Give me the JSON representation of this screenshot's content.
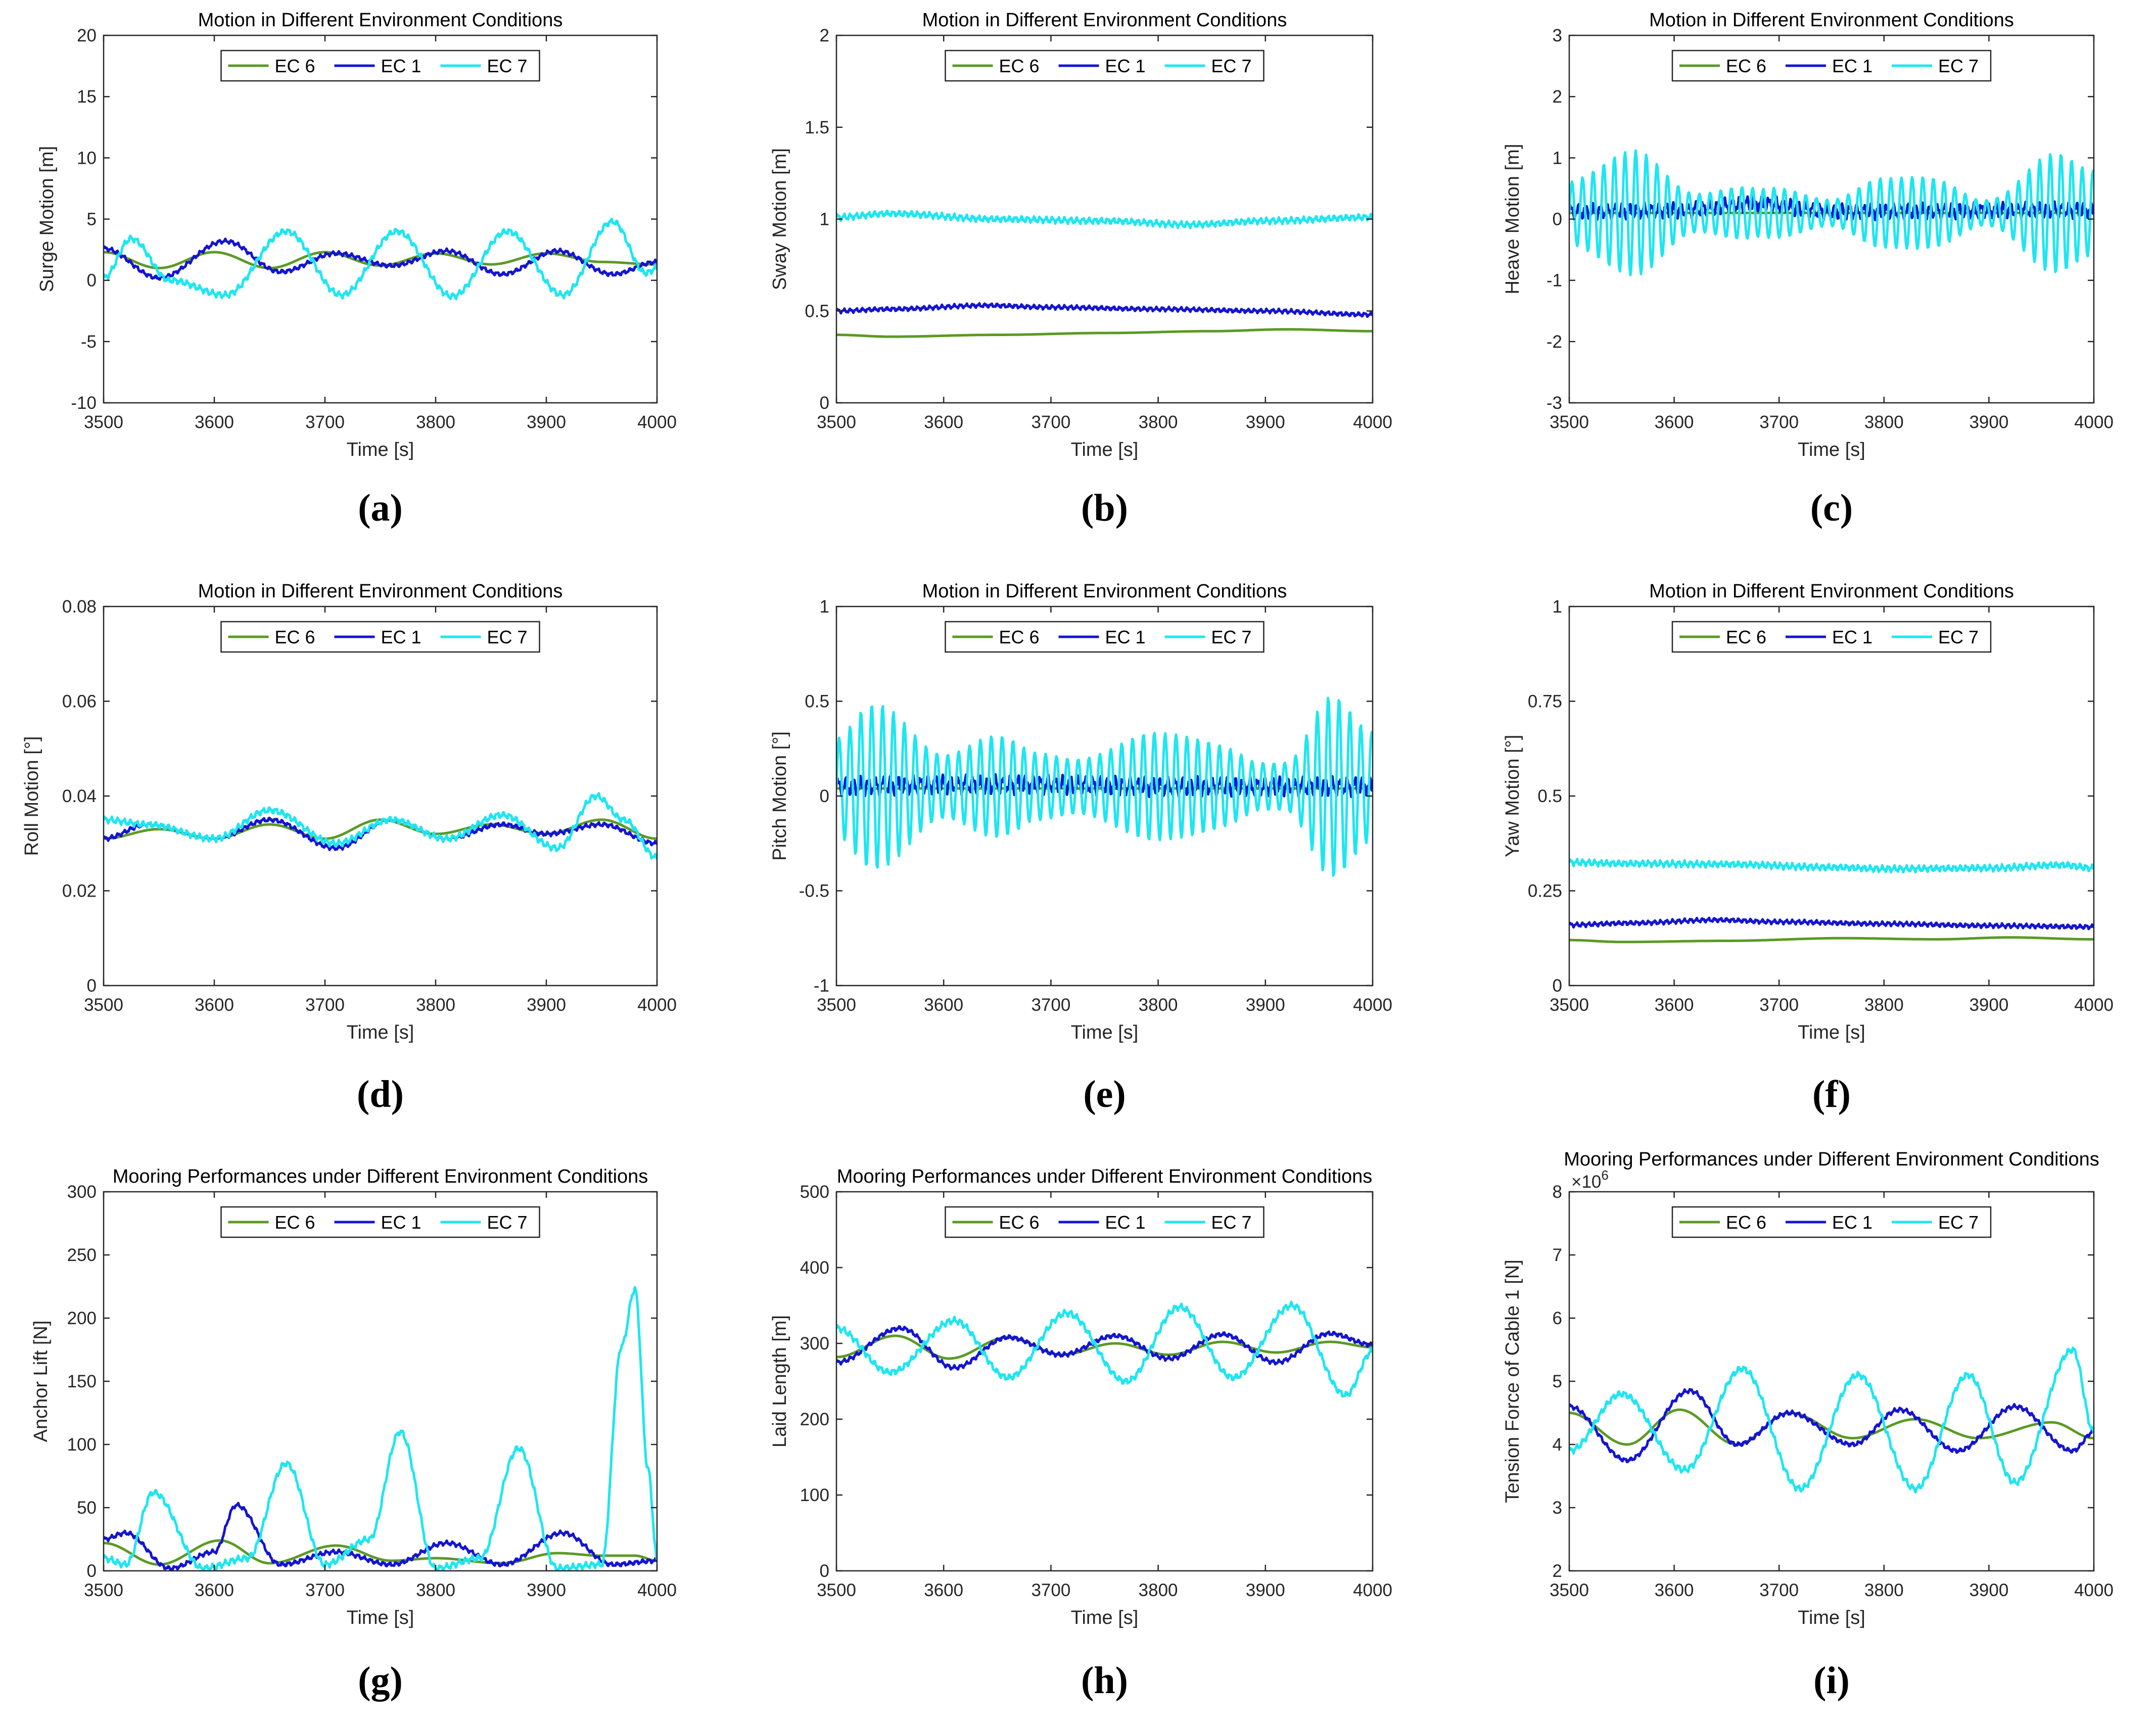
{
  "figure": {
    "panel_labels": [
      "(a)",
      "(b)",
      "(c)",
      "(d)",
      "(e)",
      "(f)",
      "(g)",
      "(h)",
      "(i)"
    ]
  },
  "colors": {
    "ec6": "#5b9a24",
    "ec1": "#1414d2",
    "ec7": "#1ee6f0"
  },
  "chart_data": [
    {
      "id": "a",
      "type": "line",
      "title": "Motion in Different Environment Conditions",
      "xlabel": "Time [s]",
      "ylabel": "Surge Motion [m]",
      "xlim": [
        3500,
        4000
      ],
      "ylim": [
        -10,
        20
      ],
      "xticks": [
        3500,
        3600,
        3700,
        3800,
        3900,
        4000
      ],
      "yticks": [
        -10,
        -5,
        0,
        5,
        10,
        15,
        20
      ],
      "legend": [
        "EC 6",
        "EC 1",
        "EC 7"
      ],
      "series": [
        {
          "name": "EC 6",
          "x": [
            3500,
            3550,
            3600,
            3650,
            3700,
            3750,
            3800,
            3850,
            3900,
            3950,
            4000
          ],
          "values": [
            2.3,
            1.0,
            2.3,
            1.0,
            2.3,
            1.2,
            2.2,
            1.3,
            2.2,
            1.5,
            1.3
          ]
        },
        {
          "name": "EC 1",
          "x": [
            3500,
            3550,
            3610,
            3660,
            3710,
            3760,
            3810,
            3860,
            3910,
            3960,
            4000
          ],
          "values": [
            2.6,
            0.2,
            3.2,
            0.7,
            2.2,
            1.2,
            2.4,
            0.5,
            2.4,
            0.5,
            1.5
          ]
        },
        {
          "name": "EC 7",
          "x": [
            3500,
            3525,
            3560,
            3610,
            3665,
            3715,
            3765,
            3815,
            3865,
            3915,
            3960,
            3990,
            4000
          ],
          "values": [
            0.2,
            3.4,
            0.0,
            -1.2,
            4.0,
            -1.2,
            4.0,
            -1.3,
            4.0,
            -1.2,
            4.8,
            0.6,
            1.0
          ]
        }
      ]
    },
    {
      "id": "b",
      "type": "line",
      "title": "Motion in Different Environment Conditions",
      "xlabel": "Time [s]",
      "ylabel": "Sway Motion [m]",
      "xlim": [
        3500,
        4000
      ],
      "ylim": [
        0,
        2
      ],
      "xticks": [
        3500,
        3600,
        3700,
        3800,
        3900,
        4000
      ],
      "yticks": [
        0,
        0.5,
        1,
        1.5,
        2
      ],
      "legend": [
        "EC 6",
        "EC 1",
        "EC 7"
      ],
      "series": [
        {
          "name": "EC 6",
          "x": [
            3500,
            3550,
            3650,
            3750,
            3850,
            3920,
            4000
          ],
          "values": [
            0.37,
            0.36,
            0.37,
            0.38,
            0.39,
            0.4,
            0.39
          ]
        },
        {
          "name": "EC 1",
          "x": [
            3500,
            3550,
            3640,
            3700,
            3800,
            3900,
            4000
          ],
          "values": [
            0.5,
            0.51,
            0.53,
            0.52,
            0.51,
            0.5,
            0.48
          ]
        },
        {
          "name": "EC 7",
          "x": [
            3500,
            3550,
            3650,
            3750,
            3830,
            3900,
            4000
          ],
          "values": [
            1.01,
            1.03,
            1.0,
            0.99,
            0.97,
            0.99,
            1.01
          ]
        }
      ]
    },
    {
      "id": "c",
      "type": "line",
      "title": "Motion in Different Environment Conditions",
      "xlabel": "Time [s]",
      "ylabel": "Heave Motion [m]",
      "xlim": [
        3500,
        4000
      ],
      "ylim": [
        -3,
        3
      ],
      "xticks": [
        3500,
        3600,
        3700,
        3800,
        3900,
        4000
      ],
      "yticks": [
        -3,
        -2,
        -1,
        0,
        1,
        2,
        3
      ],
      "legend": [
        "EC 6",
        "EC 1",
        "EC 7"
      ],
      "series": [
        {
          "name": "EC 6",
          "x": [
            3500,
            4000
          ],
          "values": [
            0.1,
            0.1
          ]
        },
        {
          "name": "EC 1",
          "x": [
            3500,
            3600,
            3680,
            3750,
            3850,
            3950,
            4000
          ],
          "values": [
            0.12,
            0.14,
            0.25,
            0.12,
            0.13,
            0.15,
            0.14
          ]
        },
        {
          "name": "EC 7",
          "x": [
            3500,
            3560,
            3620,
            3680,
            3750,
            3800,
            3850,
            3900,
            3960,
            4000
          ],
          "values": [
            0.6,
            0.9,
            0.3,
            0.6,
            0.2,
            0.5,
            0.6,
            0.3,
            0.9,
            0.6
          ]
        }
      ]
    },
    {
      "id": "d",
      "type": "line",
      "title": "Motion in Different Environment Conditions",
      "xlabel": "Time [s]",
      "ylabel": "Roll Motion [°]",
      "xlim": [
        3500,
        4000
      ],
      "ylim": [
        0,
        0.08
      ],
      "xticks": [
        3500,
        3600,
        3700,
        3800,
        3900,
        4000
      ],
      "yticks": [
        0,
        0.02,
        0.04,
        0.06,
        0.08
      ],
      "legend": [
        "EC 6",
        "EC 1",
        "EC 7"
      ],
      "series": [
        {
          "name": "EC 6",
          "x": [
            3500,
            3550,
            3600,
            3650,
            3700,
            3750,
            3800,
            3850,
            3900,
            3950,
            4000
          ],
          "values": [
            0.031,
            0.033,
            0.031,
            0.034,
            0.031,
            0.035,
            0.032,
            0.034,
            0.032,
            0.035,
            0.031
          ]
        },
        {
          "name": "EC 1",
          "x": [
            3500,
            3540,
            3600,
            3650,
            3710,
            3760,
            3810,
            3860,
            3900,
            3950,
            4000
          ],
          "values": [
            0.031,
            0.034,
            0.031,
            0.035,
            0.029,
            0.035,
            0.031,
            0.034,
            0.032,
            0.034,
            0.03
          ]
        },
        {
          "name": "EC 7",
          "x": [
            3500,
            3540,
            3600,
            3650,
            3710,
            3760,
            3810,
            3860,
            3910,
            3945,
            3970,
            4000
          ],
          "values": [
            0.035,
            0.034,
            0.031,
            0.037,
            0.03,
            0.035,
            0.031,
            0.036,
            0.029,
            0.04,
            0.035,
            0.027
          ]
        }
      ]
    },
    {
      "id": "e",
      "type": "line",
      "title": "Motion in Different Environment Conditions",
      "xlabel": "Time [s]",
      "ylabel": "Pitch Motion [°]",
      "xlim": [
        3500,
        4000
      ],
      "ylim": [
        -1,
        1
      ],
      "xticks": [
        3500,
        3600,
        3700,
        3800,
        3900,
        4000
      ],
      "yticks": [
        -1,
        -0.5,
        0,
        0.5,
        1
      ],
      "legend": [
        "EC 6",
        "EC 1",
        "EC 7"
      ],
      "series": [
        {
          "name": "EC 6",
          "x": [
            3500,
            4000
          ],
          "values": [
            0.04,
            0.04
          ]
        },
        {
          "name": "EC 1",
          "x": [
            3500,
            3600,
            3700,
            3800,
            3900,
            4000
          ],
          "values": [
            0.05,
            0.06,
            0.06,
            0.05,
            0.05,
            0.05
          ]
        },
        {
          "name": "EC 7",
          "x": [
            3500,
            3530,
            3600,
            3660,
            3730,
            3800,
            3860,
            3920,
            3960,
            4000
          ],
          "values": [
            0.3,
            0.42,
            0.15,
            0.32,
            0.15,
            0.25,
            0.25,
            0.15,
            0.44,
            0.25
          ]
        }
      ]
    },
    {
      "id": "f",
      "type": "line",
      "title": "Motion in Different Environment Conditions",
      "xlabel": "Time [s]",
      "ylabel": "Yaw Motion [°]",
      "xlim": [
        3500,
        4000
      ],
      "ylim": [
        0,
        1
      ],
      "xticks": [
        3500,
        3600,
        3700,
        3800,
        3900,
        4000
      ],
      "yticks": [
        0,
        0.25,
        0.5,
        0.75,
        1
      ],
      "legend": [
        "EC 6",
        "EC 1",
        "EC 7"
      ],
      "series": [
        {
          "name": "EC 6",
          "x": [
            3500,
            3550,
            3650,
            3760,
            3850,
            3920,
            4000
          ],
          "values": [
            0.12,
            0.115,
            0.118,
            0.125,
            0.122,
            0.127,
            0.122
          ]
        },
        {
          "name": "EC 1",
          "x": [
            3500,
            3560,
            3640,
            3700,
            3800,
            3900,
            4000
          ],
          "values": [
            0.16,
            0.165,
            0.173,
            0.168,
            0.163,
            0.158,
            0.155
          ]
        },
        {
          "name": "EC 7",
          "x": [
            3500,
            3550,
            3650,
            3750,
            3800,
            3900,
            3970,
            4000
          ],
          "values": [
            0.325,
            0.322,
            0.32,
            0.312,
            0.308,
            0.31,
            0.318,
            0.31
          ]
        }
      ]
    },
    {
      "id": "g",
      "type": "line",
      "title": "Mooring Performances under Different Environment Conditions",
      "xlabel": "Time [s]",
      "ylabel": "Anchor Lift [N]",
      "xlim": [
        3500,
        4000
      ],
      "ylim": [
        0,
        300
      ],
      "xticks": [
        3500,
        3600,
        3700,
        3800,
        3900,
        4000
      ],
      "yticks": [
        0,
        50,
        100,
        150,
        200,
        250,
        300
      ],
      "legend": [
        "EC 6",
        "EC 1",
        "EC 7"
      ],
      "series": [
        {
          "name": "EC 6",
          "x": [
            3500,
            3550,
            3605,
            3650,
            3710,
            3760,
            3800,
            3860,
            3910,
            3950,
            3980,
            4000
          ],
          "values": [
            22,
            5,
            24,
            6,
            20,
            8,
            10,
            6,
            14,
            12,
            12,
            8
          ]
        },
        {
          "name": "EC 1",
          "x": [
            3500,
            3520,
            3560,
            3600,
            3620,
            3660,
            3710,
            3760,
            3810,
            3860,
            3915,
            3960,
            4000
          ],
          "values": [
            25,
            30,
            2,
            15,
            52,
            5,
            15,
            5,
            22,
            5,
            30,
            5,
            8
          ]
        },
        {
          "name": "EC 7",
          "x": [
            3500,
            3520,
            3545,
            3590,
            3630,
            3665,
            3700,
            3740,
            3768,
            3800,
            3840,
            3875,
            3910,
            3950,
            3968,
            3980,
            3992,
            4000
          ],
          "values": [
            10,
            5,
            62,
            2,
            10,
            85,
            5,
            25,
            110,
            2,
            10,
            97,
            2,
            5,
            178,
            223,
            80,
            10
          ]
        }
      ]
    },
    {
      "id": "h",
      "type": "line",
      "title": "Mooring Performances under Different Environment Conditions",
      "xlabel": "Time [s]",
      "ylabel": "Laid Length [m]",
      "xlim": [
        3500,
        4000
      ],
      "ylim": [
        0,
        500
      ],
      "xticks": [
        3500,
        3600,
        3700,
        3800,
        3900,
        4000
      ],
      "yticks": [
        0,
        100,
        200,
        300,
        400,
        500
      ],
      "legend": [
        "EC 6",
        "EC 1",
        "EC 7"
      ],
      "series": [
        {
          "name": "EC 6",
          "x": [
            3500,
            3555,
            3605,
            3660,
            3710,
            3760,
            3810,
            3860,
            3910,
            3960,
            4000
          ],
          "values": [
            282,
            310,
            280,
            308,
            285,
            300,
            285,
            302,
            288,
            302,
            295
          ]
        },
        {
          "name": "EC 1",
          "x": [
            3500,
            3560,
            3610,
            3660,
            3710,
            3760,
            3810,
            3860,
            3910,
            3960,
            4000
          ],
          "values": [
            275,
            320,
            268,
            308,
            285,
            310,
            280,
            312,
            275,
            313,
            298
          ]
        },
        {
          "name": "EC 7",
          "x": [
            3500,
            3550,
            3610,
            3660,
            3715,
            3770,
            3820,
            3870,
            3925,
            3975,
            4000
          ],
          "values": [
            320,
            262,
            330,
            255,
            340,
            250,
            348,
            255,
            350,
            232,
            290
          ]
        }
      ]
    },
    {
      "id": "i",
      "type": "line",
      "title": "Mooring Performances under Different Environment Conditions",
      "xlabel": "Time [s]",
      "ylabel": "Tension Force of Cable 1 [N]",
      "y_exponent": "×10",
      "y_exponent_power": "6",
      "xlim": [
        3500,
        4000
      ],
      "ylim": [
        2,
        8
      ],
      "xticks": [
        3500,
        3600,
        3700,
        3800,
        3900,
        4000
      ],
      "yticks": [
        2,
        3,
        4,
        5,
        6,
        7,
        8
      ],
      "legend": [
        "EC 6",
        "EC 1",
        "EC 7"
      ],
      "series": [
        {
          "name": "EC 6",
          "x": [
            3500,
            3555,
            3605,
            3660,
            3710,
            3770,
            3830,
            3890,
            3960,
            4000
          ],
          "values": [
            4.5,
            4.0,
            4.55,
            4.0,
            4.5,
            4.1,
            4.4,
            4.1,
            4.35,
            4.1
          ]
        },
        {
          "name": "EC 1",
          "x": [
            3500,
            3555,
            3615,
            3660,
            3710,
            3770,
            3815,
            3870,
            3925,
            3980,
            4000
          ],
          "values": [
            4.6,
            3.75,
            4.85,
            4.0,
            4.5,
            4.0,
            4.55,
            3.9,
            4.6,
            3.9,
            4.2
          ]
        },
        {
          "name": "EC 7",
          "x": [
            3500,
            3550,
            3610,
            3665,
            3720,
            3775,
            3830,
            3880,
            3925,
            3980,
            4000
          ],
          "values": [
            3.9,
            4.8,
            3.6,
            5.2,
            3.3,
            5.1,
            3.3,
            5.1,
            3.4,
            5.5,
            4.2
          ]
        }
      ]
    }
  ]
}
